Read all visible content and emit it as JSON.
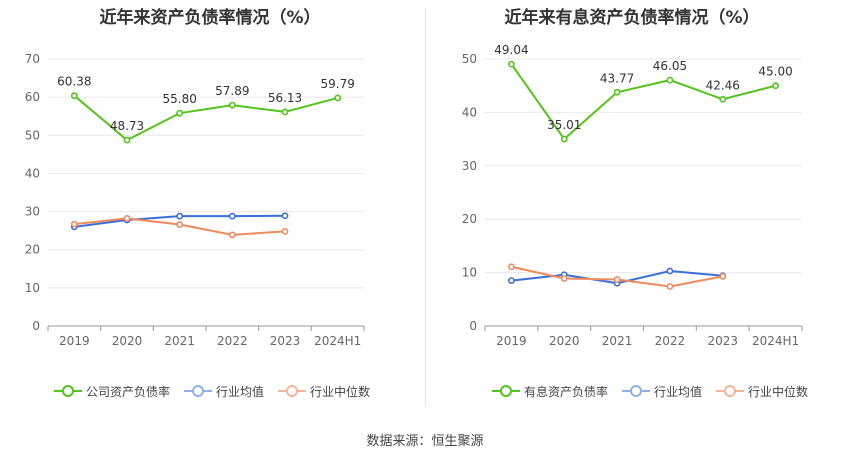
{
  "source_label": "数据来源：恒生聚源",
  "colors": {
    "company": "#52c41a",
    "avg": "#3a6fd8",
    "median": "#ef8a5d",
    "avg_legend": "#8fb0ec",
    "median_legend": "#f4b59a"
  },
  "chart_data": [
    {
      "type": "line",
      "title": "近年来资产负债率情况（%）",
      "categories": [
        "2019",
        "2020",
        "2021",
        "2022",
        "2023",
        "2024H1"
      ],
      "ylim": [
        0,
        70
      ],
      "yticks": [
        0,
        10,
        20,
        30,
        40,
        50,
        60,
        70
      ],
      "grid": true,
      "legend_position": "bottom",
      "series": [
        {
          "name": "公司资产负债率",
          "key": "company",
          "values": [
            60.38,
            48.73,
            55.8,
            57.89,
            56.13,
            59.79
          ],
          "labels": [
            "60.38",
            "48.73",
            "55.80",
            "57.89",
            "56.13",
            "59.79"
          ]
        },
        {
          "name": "行业均值",
          "key": "avg",
          "values": [
            26.0,
            27.8,
            28.8,
            28.8,
            28.9,
            null
          ]
        },
        {
          "name": "行业中位数",
          "key": "median",
          "values": [
            26.7,
            28.2,
            26.6,
            23.9,
            24.8,
            null
          ]
        }
      ]
    },
    {
      "type": "line",
      "title": "近年来有息资产负债率情况（%）",
      "categories": [
        "2019",
        "2020",
        "2021",
        "2022",
        "2023",
        "2024H1"
      ],
      "ylim": [
        0,
        50
      ],
      "yticks": [
        0,
        10,
        20,
        30,
        40,
        50
      ],
      "grid": true,
      "legend_position": "bottom",
      "series": [
        {
          "name": "有息资产负债率",
          "key": "company",
          "values": [
            49.04,
            35.01,
            43.77,
            46.05,
            42.46,
            45.0
          ],
          "labels": [
            "49.04",
            "35.01",
            "43.77",
            "46.05",
            "42.46",
            "45.00"
          ]
        },
        {
          "name": "行业均值",
          "key": "avg",
          "values": [
            8.5,
            9.6,
            8.0,
            10.3,
            9.4,
            null
          ]
        },
        {
          "name": "行业中位数",
          "key": "median",
          "values": [
            11.1,
            8.9,
            8.7,
            7.4,
            9.3,
            null
          ]
        }
      ]
    }
  ]
}
